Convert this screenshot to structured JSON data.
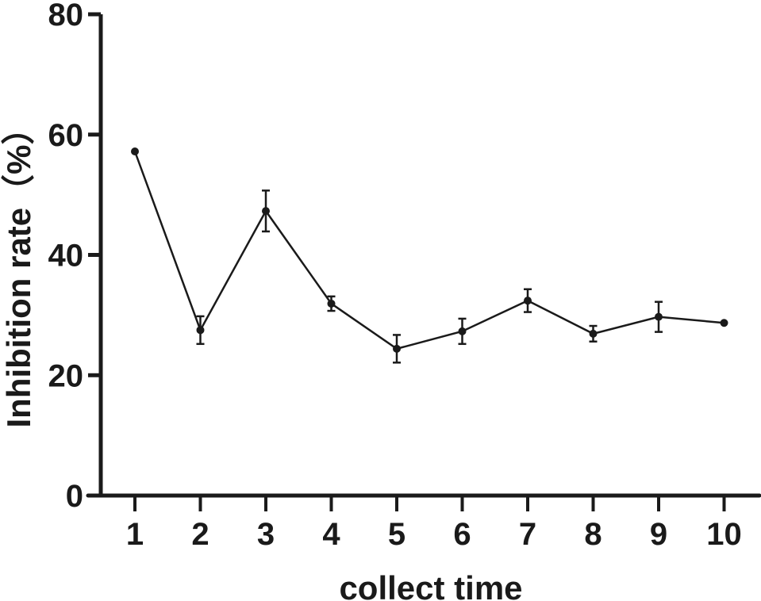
{
  "chart_data": {
    "type": "line",
    "title": "",
    "xlabel": "collect time",
    "ylabel": "Inhibition rate（%）",
    "x": [
      1,
      2,
      3,
      4,
      5,
      6,
      7,
      8,
      9,
      10
    ],
    "categories": [
      "1",
      "2",
      "3",
      "4",
      "5",
      "6",
      "7",
      "8",
      "9",
      "10"
    ],
    "series": [
      {
        "name": "Inhibition rate",
        "values": [
          57.2,
          27.5,
          47.3,
          31.9,
          24.4,
          27.3,
          32.4,
          26.9,
          29.7,
          28.7
        ],
        "error": [
          0.3,
          2.3,
          3.4,
          1.2,
          2.3,
          2.1,
          1.9,
          1.3,
          2.5,
          0.3
        ]
      }
    ],
    "ylim": [
      0,
      80
    ],
    "yticks": [
      0,
      20,
      40,
      60,
      80
    ],
    "grid": false,
    "legend": "none",
    "color": "#1a1a1a"
  }
}
